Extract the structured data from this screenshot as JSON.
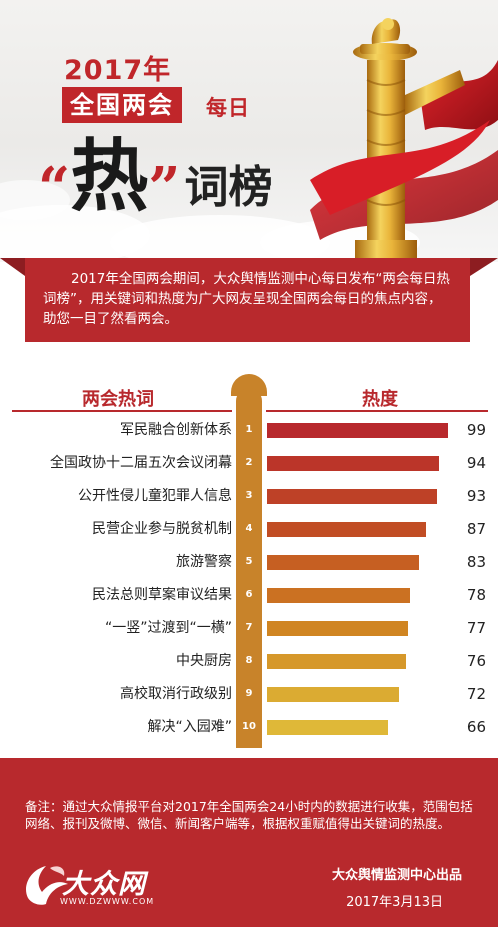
{
  "header": {
    "year": "2017年",
    "meeting": "全国两会",
    "daily": "每日",
    "quote_open": "“",
    "hot": "热",
    "quote_close": "”",
    "rank": "词榜"
  },
  "intro": {
    "text": "2017年全国两会期间，大众舆情监测中心每日发布“两会每日热词榜”，用关键词和热度为广大网友呈现全国两会每日的焦点内容，助您一目了然看两会。"
  },
  "chart_data": {
    "type": "bar",
    "orientation": "horizontal",
    "xlabel": "两会热词",
    "ylabel": "热度",
    "ranks": [
      "1",
      "2",
      "3",
      "4",
      "5",
      "6",
      "7",
      "8",
      "9",
      "10"
    ],
    "categories": [
      "军民融合创新体系",
      "全国政协十二届五次会议闭幕",
      "公开性侵儿童犯罪人信息",
      "民营企业参与脱贫机制",
      "旅游警察",
      "民法总则草案审议结果",
      "“一竖”过渡到“一横”",
      "中央厨房",
      "高校取消行政级别",
      "解决“入园难”"
    ],
    "values": [
      99,
      94,
      93,
      87,
      83,
      78,
      77,
      76,
      72,
      66
    ],
    "value_labels": [
      "99",
      "94",
      "93",
      "87",
      "83",
      "78",
      "77",
      "76",
      "72",
      "66"
    ],
    "colors": [
      "#b8292d",
      "#bb3529",
      "#be4127",
      "#c14d24",
      "#c65f22",
      "#cb7122",
      "#d08522",
      "#d6982a",
      "#dbab32",
      "#dfb838"
    ],
    "grid": false,
    "legend": "none"
  },
  "footer": {
    "note": "备注：通过大众情报平台对2017年全国两会24小时内的数据进行收集，范围包括网络、报刊及微博、微信、新闻客户端等，根据权重赋值得出关键词的热度。",
    "logo_text": "大众网",
    "logo_url": "WWW.DZWWW.COM",
    "producer": "大众舆情监测中心出品",
    "date": "2017年3月13日"
  },
  "colors": {
    "brand_red": "#b8292d",
    "gold": "#c8832a"
  }
}
